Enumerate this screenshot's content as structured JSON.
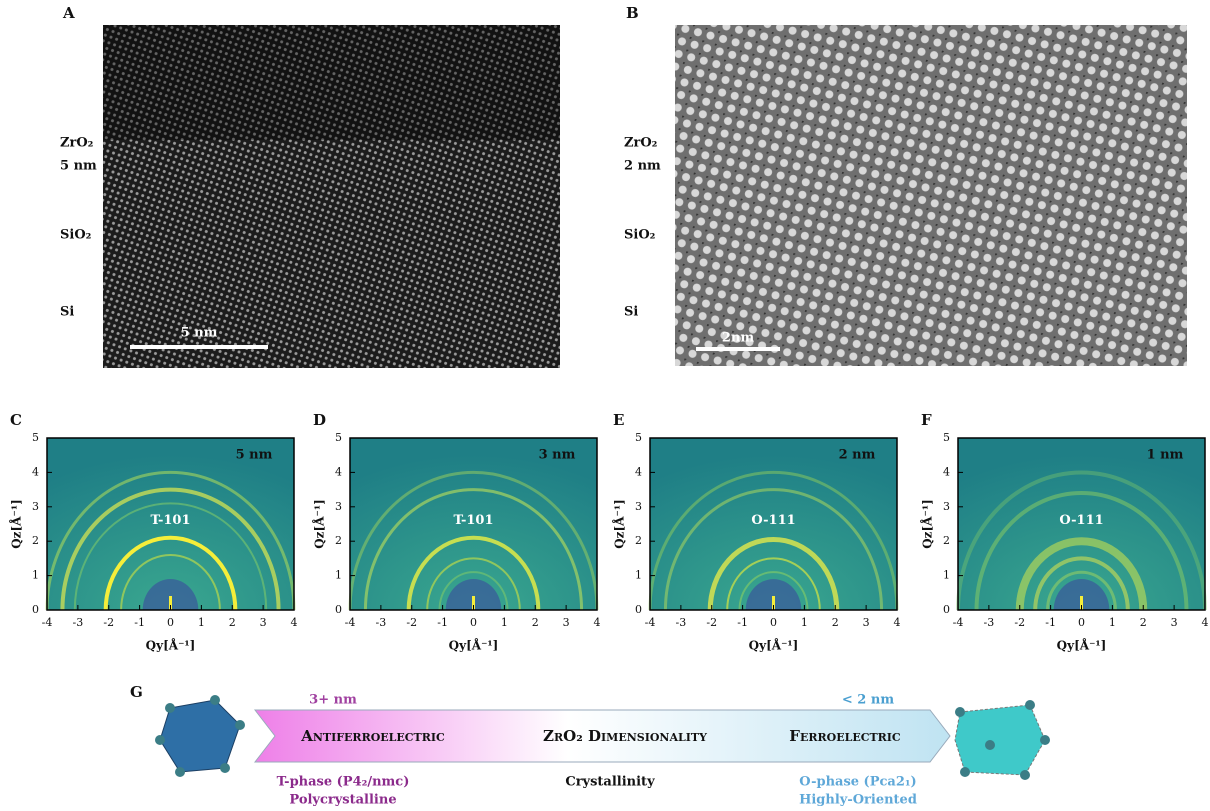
{
  "tem": [
    {
      "label": "A",
      "layers": [
        "ZrO₂",
        "5 nm",
        "SiO₂",
        "Si"
      ],
      "scale_bar": "5 nm"
    },
    {
      "label": "B",
      "layers": [
        "ZrO₂",
        "2 nm",
        "SiO₂",
        "Si"
      ],
      "scale_bar": "2nm"
    }
  ],
  "giwaxs": {
    "x_axis_label": "Qy[Å⁻¹]",
    "y_axis_label": "Qz[Å⁻¹]",
    "xticks": [
      -4,
      -3,
      -2,
      -1,
      0,
      1,
      2,
      3,
      4
    ],
    "yticks": [
      0,
      1,
      2,
      3,
      4,
      5
    ],
    "panels": [
      {
        "label": "C",
        "thickness": "5 nm",
        "peak": "T-101"
      },
      {
        "label": "D",
        "thickness": "3 nm",
        "peak": "T-101"
      },
      {
        "label": "E",
        "thickness": "2 nm",
        "peak": "O-111"
      },
      {
        "label": "F",
        "thickness": "1 nm",
        "peak": "O-111"
      }
    ]
  },
  "schematic": {
    "label": "G",
    "left_size": "3+ nm",
    "right_size": "< 2 nm",
    "left_phase": "Antiferroelectric",
    "center": "ZrO₂ Dimensionality",
    "right_phase": "Ferroelectric",
    "left_desc": [
      "T-phase (P4₂/nmc)",
      "Polycrystalline"
    ],
    "center_desc": "Crystallinity",
    "right_desc": [
      "O-phase (Pca2₁)",
      "Highly-Oriented"
    ]
  }
}
